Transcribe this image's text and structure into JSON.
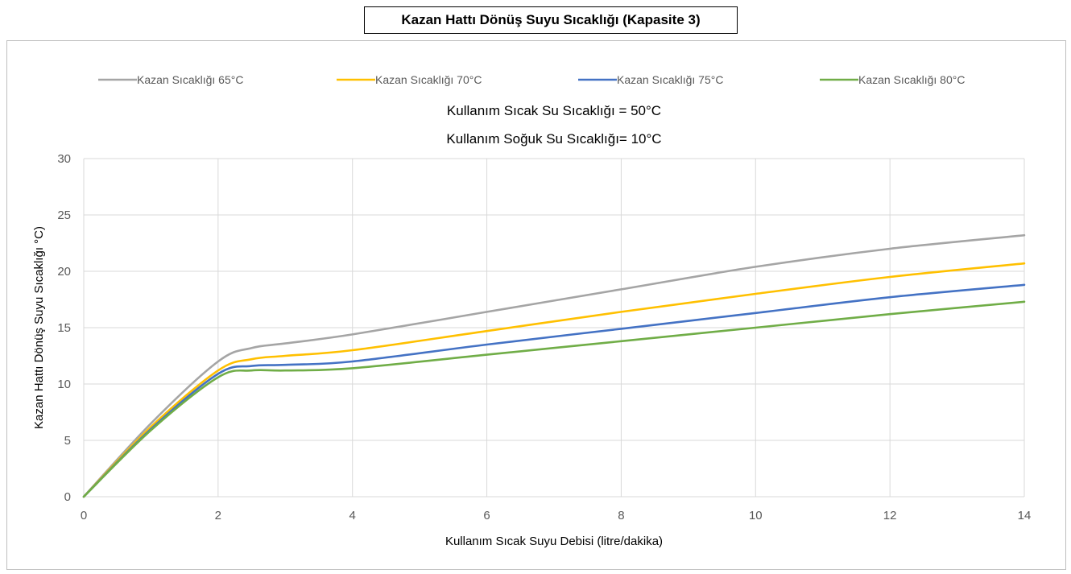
{
  "title": "Kazan Hattı Dönüş Suyu Sıcaklığı (Kapasite 3)",
  "chart_data": {
    "type": "line",
    "subtitle_lines": [
      "Kullanım Sıcak Su Sıcaklığı = 50°C",
      "Kullanım Soğuk Su Sıcaklığı= 10°C"
    ],
    "xlabel": "Kullanım Sıcak Suyu Debisi (litre/dakika)",
    "ylabel": "Kazan Hattı Dönüş Suyu Sıcaklığı °C)",
    "xlim": [
      0,
      14
    ],
    "ylim": [
      0,
      30
    ],
    "x_ticks": [
      0,
      2,
      4,
      6,
      8,
      10,
      12,
      14
    ],
    "y_ticks": [
      0,
      5,
      10,
      15,
      20,
      25,
      30
    ],
    "grid": true,
    "legend_position": "top",
    "series": [
      {
        "name": "Kazan Sıcaklığı 65°C",
        "color": "#a5a5a5",
        "x": [
          0,
          1,
          2,
          2.5,
          3,
          4,
          6,
          8,
          10,
          12,
          14
        ],
        "y": [
          0,
          6.5,
          12.0,
          13.2,
          13.6,
          14.4,
          16.4,
          18.4,
          20.4,
          22.0,
          23.2
        ]
      },
      {
        "name": "Kazan Sıcaklığı 70°C",
        "color": "#ffc000",
        "x": [
          0,
          1,
          2,
          2.5,
          3,
          4,
          6,
          8,
          10,
          12,
          14
        ],
        "y": [
          0,
          6.2,
          11.2,
          12.2,
          12.5,
          13.0,
          14.7,
          16.4,
          18.0,
          19.5,
          20.7
        ]
      },
      {
        "name": "Kazan Sıcaklığı 75°C",
        "color": "#4472c4",
        "x": [
          0,
          1,
          2,
          2.5,
          3,
          4,
          6,
          8,
          10,
          12,
          14
        ],
        "y": [
          0,
          6.0,
          10.9,
          11.6,
          11.7,
          12.0,
          13.5,
          14.9,
          16.3,
          17.7,
          18.8
        ]
      },
      {
        "name": "Kazan Sıcaklığı 80°C",
        "color": "#70ad47",
        "x": [
          0,
          1,
          2,
          2.5,
          3,
          4,
          6,
          8,
          10,
          12,
          14
        ],
        "y": [
          0,
          5.9,
          10.6,
          11.2,
          11.2,
          11.4,
          12.6,
          13.8,
          15.0,
          16.2,
          17.3
        ]
      }
    ]
  }
}
